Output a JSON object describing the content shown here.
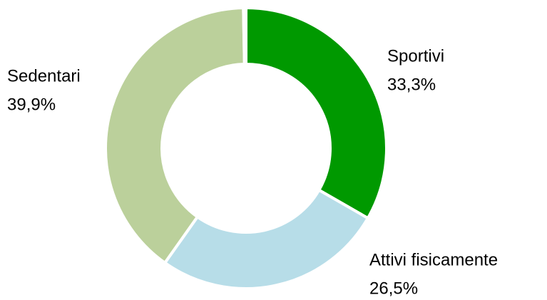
{
  "chart_data": {
    "type": "donut",
    "categories": [
      "Sportivi",
      "Attivi fisicamente",
      "Sedentari",
      null
    ],
    "values": [
      33.3,
      26.5,
      39.9,
      0.3
    ],
    "value_labels": [
      "33,3%",
      "26,5%",
      "39,9%",
      null
    ],
    "colors": [
      "#009900",
      "#b7dde8",
      "#bbd09b",
      "#d7e4bd"
    ]
  }
}
